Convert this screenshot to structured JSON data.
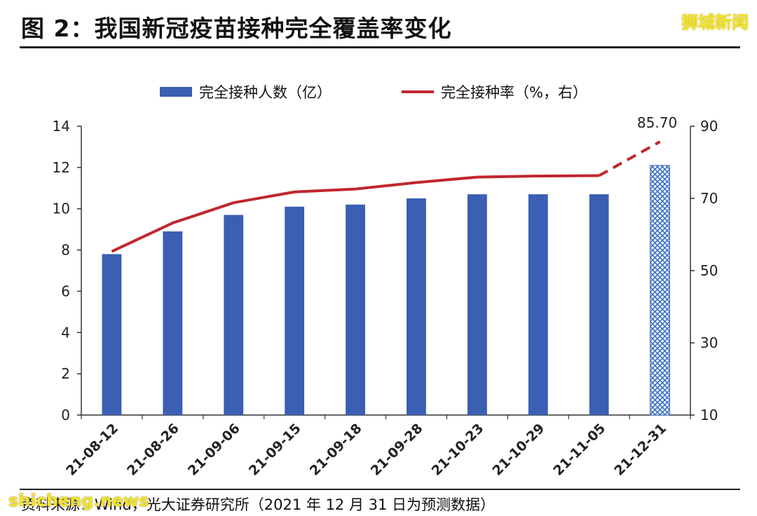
{
  "header": {
    "title": "图 2：我国新冠疫苗接种完全覆盖率变化",
    "watermark": "狮城新闻"
  },
  "footer": {
    "source": "资料来源：Wind，光大证券研究所（2021 年 12 月 31 日为预测数据）",
    "watermark": "shicheng.news"
  },
  "chart_data": {
    "type": "bar",
    "categories": [
      "21-08-12",
      "21-08-26",
      "21-09-06",
      "21-09-15",
      "21-09-18",
      "21-09-28",
      "21-10-23",
      "21-10-29",
      "21-11-05",
      "21-12-31"
    ],
    "series": [
      {
        "name": "完全接种人数（亿）",
        "type": "bar",
        "axis": "left",
        "values": [
          7.8,
          8.9,
          9.7,
          10.1,
          10.2,
          10.5,
          10.7,
          10.7,
          10.7,
          12.1
        ],
        "color": "#3a5fb3",
        "forecast_from_index": 9,
        "forecast_style": "crosshatch"
      },
      {
        "name": "完全接种率（%，右）",
        "type": "line",
        "axis": "right",
        "values": [
          55.3,
          63.2,
          68.8,
          71.8,
          72.6,
          74.4,
          75.9,
          76.2,
          76.3,
          85.7
        ],
        "color": "#c0272d",
        "forecast_from_index": 9,
        "forecast_style": "dashed"
      }
    ],
    "data_labels": [
      {
        "series": 1,
        "index": 9,
        "text": "85.70"
      }
    ],
    "y_left": {
      "lim": [
        0,
        14
      ],
      "ticks": [
        0,
        2,
        4,
        6,
        8,
        10,
        12,
        14
      ]
    },
    "y_right": {
      "lim": [
        10,
        90
      ],
      "ticks": [
        10,
        30,
        50,
        70,
        90
      ]
    },
    "grid": false,
    "legend_position": "top"
  }
}
